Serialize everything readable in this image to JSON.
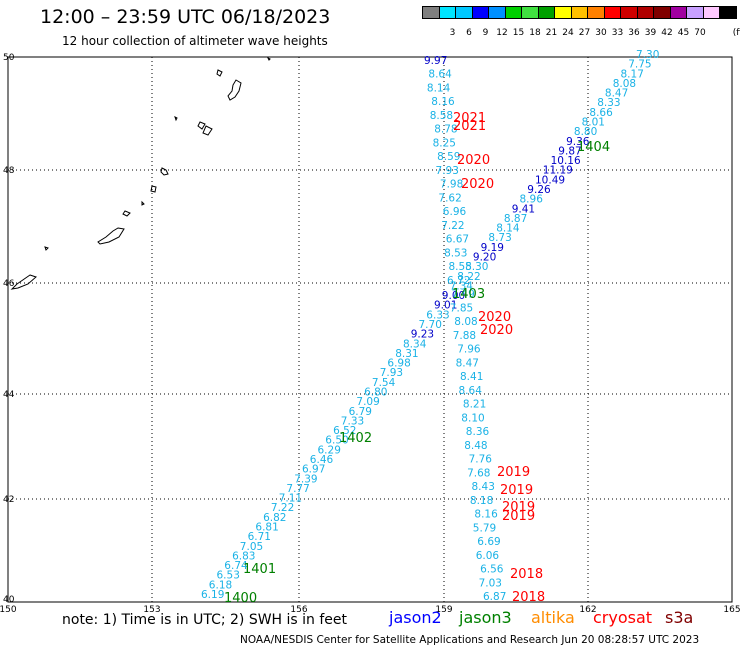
{
  "header": {
    "title": "12:00 – 23:59 UTC 06/18/2023",
    "subtitle": "12 hour collection of altimeter wave heights"
  },
  "colorbar": {
    "colors": [
      "#7f7f7f",
      "#00e5ff",
      "#00c8ff",
      "#0000ff",
      "#0090ff",
      "#00d000",
      "#40e040",
      "#00a000",
      "#ffff00",
      "#ffc000",
      "#ff8000",
      "#ff0000",
      "#d00000",
      "#b00000",
      "#800000",
      "#a000a0",
      "#c8a0ff",
      "#ffc8ff",
      "#000000"
    ],
    "labels": [
      "3",
      "6",
      "9",
      "12",
      "15",
      "18",
      "21",
      "24",
      "27",
      "30",
      "33",
      "36",
      "39",
      "42",
      "45",
      "70"
    ],
    "unit": "(ft)"
  },
  "axes": {
    "lon_labels": [
      "150",
      "153",
      "156",
      "159",
      "162",
      "165"
    ],
    "lat_labels": [
      "50",
      "48",
      "46",
      "44",
      "42",
      "40"
    ]
  },
  "passes": [
    {
      "id": "p1400",
      "label": "1400",
      "mission": "jason3"
    },
    {
      "id": "p1401",
      "label": "1401",
      "mission": "jason3"
    },
    {
      "id": "p1402",
      "label": "1402",
      "mission": "jason3"
    },
    {
      "id": "p1403",
      "label": "1403",
      "mission": "jason3"
    },
    {
      "id": "p1404",
      "label": "1404",
      "mission": "jason3"
    },
    {
      "id": "p2018a",
      "label": "2018",
      "mission": "cryosat"
    },
    {
      "id": "p2018b",
      "label": "2018",
      "mission": "cryosat"
    },
    {
      "id": "p2019a",
      "label": "2019",
      "mission": "cryosat"
    },
    {
      "id": "p2019b",
      "label": "2019",
      "mission": "cryosat"
    },
    {
      "id": "p2019c",
      "label": "2019",
      "mission": "cryosat"
    },
    {
      "id": "p2019d",
      "label": "2019",
      "mission": "cryosat"
    },
    {
      "id": "p2020a",
      "label": "2020",
      "mission": "cryosat"
    },
    {
      "id": "p2020b",
      "label": "2020",
      "mission": "cryosat"
    },
    {
      "id": "p2020c",
      "label": "2020",
      "mission": "cryosat"
    },
    {
      "id": "p2020d",
      "label": "2020",
      "mission": "cryosat"
    },
    {
      "id": "p2021a",
      "label": "2021",
      "mission": "cryosat"
    },
    {
      "id": "p2021b",
      "label": "2021",
      "mission": "cryosat"
    }
  ],
  "wave_heights": {
    "diagonal": [
      "6.19",
      "6.18",
      "6.53",
      "6.74",
      "6.83",
      "7.05",
      "6.71",
      "6.81",
      "6.82",
      "7.22",
      "7.11",
      "7.77",
      "7.39",
      "6.97",
      "6.46",
      "6.29",
      "6.50",
      "6.52",
      "7.33",
      "6.79",
      "7.09",
      "6.80",
      "7.54",
      "7.93",
      "6.98",
      "8.31",
      "8.34",
      "9.23",
      "7.70",
      "6.33",
      "9.01",
      "9.00",
      "7.34",
      "8.22",
      "8.30",
      "9.20",
      "9.19",
      "8.73",
      "8.14",
      "8.87",
      "9.41",
      "8.96",
      "9.26",
      "10.49",
      "11.19",
      "10.16",
      "9.87",
      "9.36",
      "8.80",
      "8.01",
      "8.66",
      "8.33",
      "8.47",
      "8.08",
      "8.17",
      "7.75",
      "7.30"
    ],
    "vertical": [
      "9.97",
      "8.64",
      "8.14",
      "8.16",
      "8.58",
      "8.78",
      "8.25",
      "8.59",
      "7.93",
      "7.98",
      "7.62",
      "6.96",
      "7.22",
      "6.67",
      "8.53",
      "8.55",
      "6.72",
      "7.49",
      "7.85",
      "8.08",
      "7.88",
      "7.96",
      "8.47",
      "8.41",
      "8.64",
      "8.21",
      "8.10",
      "8.36",
      "8.48",
      "7.76",
      "7.68",
      "8.43",
      "8.18",
      "8.16",
      "5.79",
      "6.69",
      "6.06",
      "6.56",
      "7.03",
      "6.87"
    ]
  },
  "legend": {
    "note": "note: 1) Time is in UTC; 2) SWH is in feet",
    "missions": [
      {
        "name": "jason2",
        "color": "#0000ff"
      },
      {
        "name": "jason3",
        "color": "#008000"
      },
      {
        "name": "altika",
        "color": "#ff8c00"
      },
      {
        "name": "cryosat",
        "color": "#ff0000"
      },
      {
        "name": "s3a",
        "color": "#800000"
      }
    ]
  },
  "footer": {
    "credit": "NOAA/NESDIS Center for Satellite Applications and Research   Jun 20 08:28:57 UTC 2023"
  }
}
